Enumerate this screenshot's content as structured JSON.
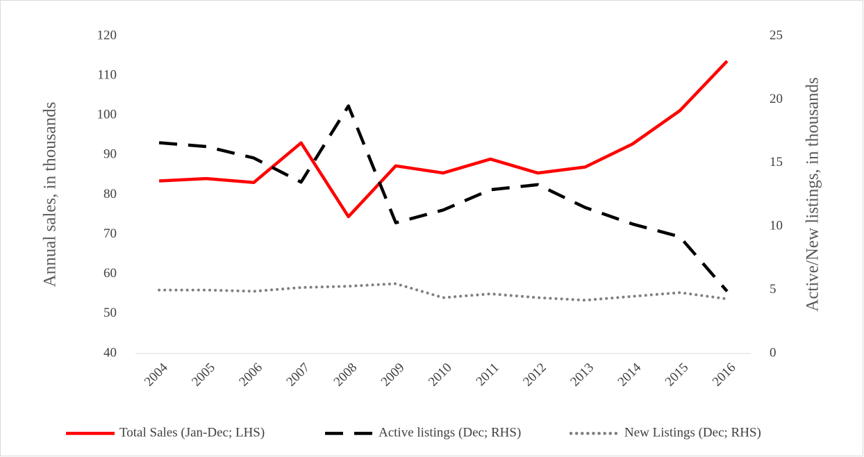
{
  "chart_data": {
    "type": "line",
    "categories": [
      "2004",
      "2005",
      "2006",
      "2007",
      "2008",
      "2009",
      "2010",
      "2011",
      "2012",
      "2013",
      "2014",
      "2015",
      "2016"
    ],
    "ylabel": "Annual sales, in thousands",
    "y2label": "Active/New listings, in thousands",
    "ylim": [
      40,
      120
    ],
    "yticks": [
      40,
      50,
      60,
      70,
      80,
      90,
      100,
      110,
      120
    ],
    "y2lim": [
      0,
      25
    ],
    "y2ticks": [
      0,
      5,
      10,
      15,
      20,
      25
    ],
    "legend": "bottom",
    "series": [
      {
        "name": "Total Sales (Jan-Dec; LHS)",
        "color": "#ff0000",
        "style": "solid",
        "axis": "y",
        "values": [
          83.5,
          84.1,
          83.1,
          93.1,
          74.5,
          87.3,
          85.5,
          89.0,
          85.5,
          87.0,
          92.8,
          101.2,
          113.7
        ]
      },
      {
        "name": "Active listings (Dec; RHS)",
        "color": "#000000",
        "style": "dashed",
        "axis": "y2",
        "values": [
          16.6,
          16.3,
          15.4,
          13.5,
          19.5,
          10.3,
          11.3,
          12.9,
          13.3,
          11.5,
          10.2,
          9.2,
          4.9
        ]
      },
      {
        "name": "New Listings (Dec; RHS)",
        "color": "#808080",
        "style": "dotted",
        "axis": "y2",
        "values": [
          5.0,
          5.0,
          4.9,
          5.2,
          5.3,
          5.5,
          4.4,
          4.7,
          4.4,
          4.2,
          4.5,
          4.8,
          4.3
        ]
      }
    ]
  }
}
